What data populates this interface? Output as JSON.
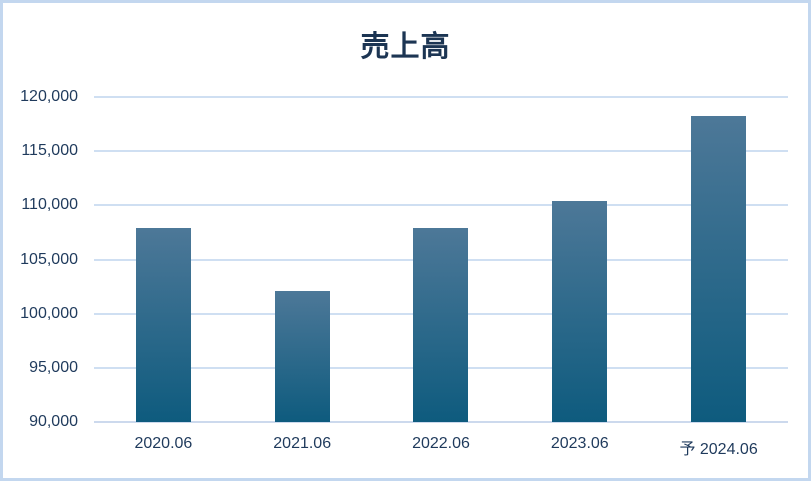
{
  "page": {
    "background": "#ffffff",
    "border_color": "#c3d7ef"
  },
  "chart_data": {
    "type": "bar",
    "title": "売上高",
    "categories": [
      "2020.06",
      "2021.06",
      "2022.06",
      "2023.06",
      "予 2024.06"
    ],
    "values": [
      107900,
      102100,
      107900,
      110450,
      118250
    ],
    "xlabel": "",
    "ylabel": "",
    "ylim": [
      90000,
      120000
    ],
    "ytick_step": 5000,
    "ytick_labels": [
      "120,000",
      "115,000",
      "110,000",
      "105,000",
      "100,000",
      "95,000",
      "90,000"
    ],
    "grid": true,
    "legend": false,
    "colors": {
      "bar_gradient_top": "#4d7898",
      "bar_gradient_bottom": "#0e5b7e",
      "gridline": "#cfdff2",
      "axis_line": "#ccd9ed",
      "tick_label": "#1f3a5c",
      "title": "#1c3553"
    }
  }
}
